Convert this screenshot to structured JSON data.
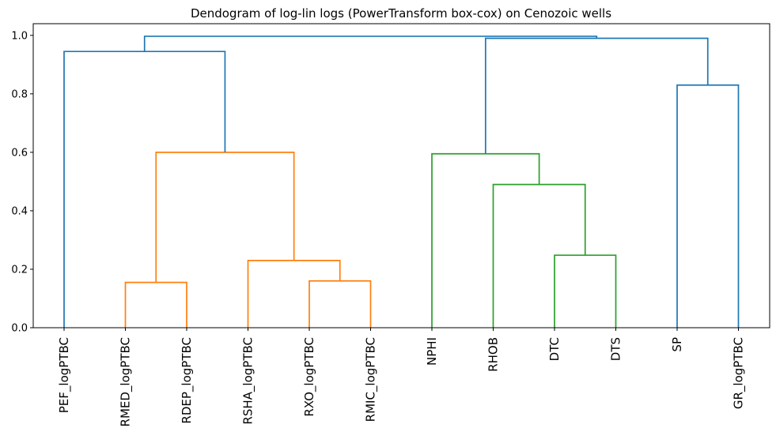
{
  "chart_data": {
    "type": "dendrogram",
    "title": "Dendogram of log-lin logs (PowerTransform box-cox) on Cenozoic wells",
    "xlabel": "",
    "ylabel": "",
    "ylim": [
      0,
      1.04
    ],
    "y_ticks": [
      "0.0",
      "0.2",
      "0.4",
      "0.6",
      "0.8",
      "1.0"
    ],
    "y_tick_values": [
      0.0,
      0.2,
      0.4,
      0.6,
      0.8,
      1.0
    ],
    "leaves": [
      "PEF_logPTBC",
      "RMED_logPTBC",
      "RDEP_logPTBC",
      "RSHA_logPTBC",
      "RXO_logPTBC",
      "RMIC_logPTBC",
      "NPHI",
      "RHOB",
      "DTC",
      "DTS",
      "SP",
      "GR_logPTBC"
    ],
    "colors": {
      "blue": "#1f77b4",
      "orange": "#ff7f0e",
      "green": "#2ca02c"
    },
    "merges": [
      {
        "left": "L1",
        "right": "L2",
        "height": 0.155,
        "color": "orange",
        "id": "A"
      },
      {
        "left": "L4",
        "right": "L5",
        "height": 0.16,
        "color": "orange",
        "id": "B"
      },
      {
        "left": "L3",
        "right": "B",
        "height": 0.23,
        "color": "orange",
        "id": "C"
      },
      {
        "left": "A",
        "right": "C",
        "height": 0.6,
        "color": "orange",
        "id": "D"
      },
      {
        "left": "L0",
        "right": "D",
        "height": 0.945,
        "color": "blue",
        "id": "E"
      },
      {
        "left": "L8",
        "right": "L9",
        "height": 0.248,
        "color": "green",
        "id": "F"
      },
      {
        "left": "L7",
        "right": "F",
        "height": 0.49,
        "color": "green",
        "id": "G"
      },
      {
        "left": "L6",
        "right": "G",
        "height": 0.595,
        "color": "green",
        "id": "H"
      },
      {
        "left": "L10",
        "right": "L11",
        "height": 0.83,
        "color": "blue",
        "id": "I"
      },
      {
        "left": "H",
        "right": "I",
        "height": 0.99,
        "color": "blue",
        "id": "J"
      },
      {
        "left": "E",
        "right": "J",
        "height": 0.997,
        "color": "blue",
        "id": "K"
      }
    ]
  }
}
